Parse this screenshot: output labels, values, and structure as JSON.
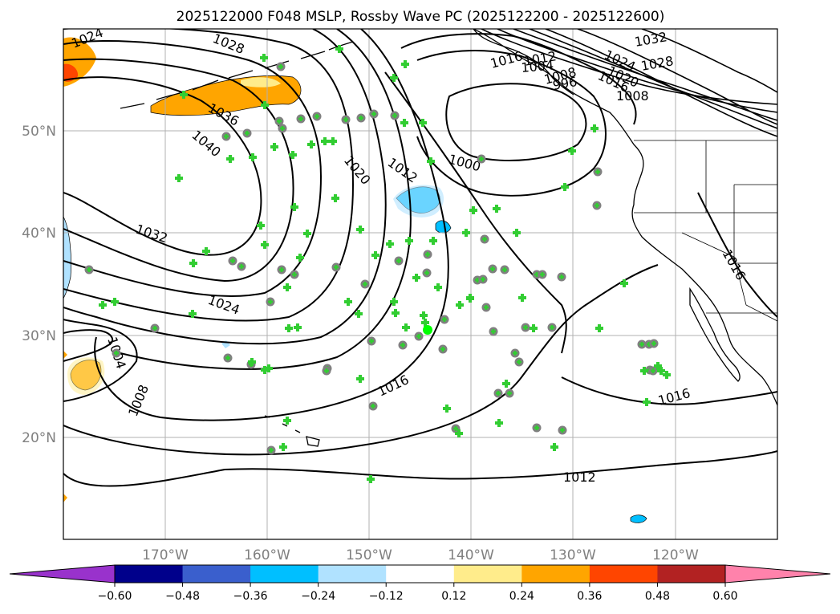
{
  "title": "2025122000 F048 MSLP, Rossby Wave PC (2025122200 - 2025122600)",
  "axes": {
    "lon_labels": [
      "170°W",
      "160°W",
      "150°W",
      "140°W",
      "130°W",
      "120°W"
    ],
    "lat_labels": [
      "50°N",
      "40°N",
      "30°N",
      "20°N"
    ],
    "lon_range": [
      -180,
      -110
    ],
    "lat_range": [
      10,
      60
    ],
    "grid": true
  },
  "colorbar": {
    "ticks": [
      "−0.60",
      "−0.48",
      "−0.36",
      "−0.24",
      "−0.12",
      "0.12",
      "0.24",
      "0.36",
      "0.48",
      "0.60"
    ],
    "colors": [
      "#9932cc",
      "#00008b",
      "#3a5fcd",
      "#00bfff",
      "#b0e2ff",
      "#ffffff",
      "#ffec8b",
      "#ffa500",
      "#ff4500",
      "#b22222",
      "#ff82ab"
    ],
    "extend": "both"
  },
  "contour_labels": [
    "1024",
    "1028",
    "1036",
    "1040",
    "1032",
    "1024",
    "1004",
    "1008",
    "1020",
    "1012",
    "1016",
    "1012",
    "1000",
    "1016",
    "1016",
    "1008",
    "1016",
    "1032",
    "1028",
    "1024",
    "1020",
    "1016",
    "1012",
    "1008",
    "1004",
    "996"
  ],
  "markers": {
    "circle_color": "#808080",
    "plus_color": "#32cd32",
    "highlight_color": "#00ff00"
  }
}
